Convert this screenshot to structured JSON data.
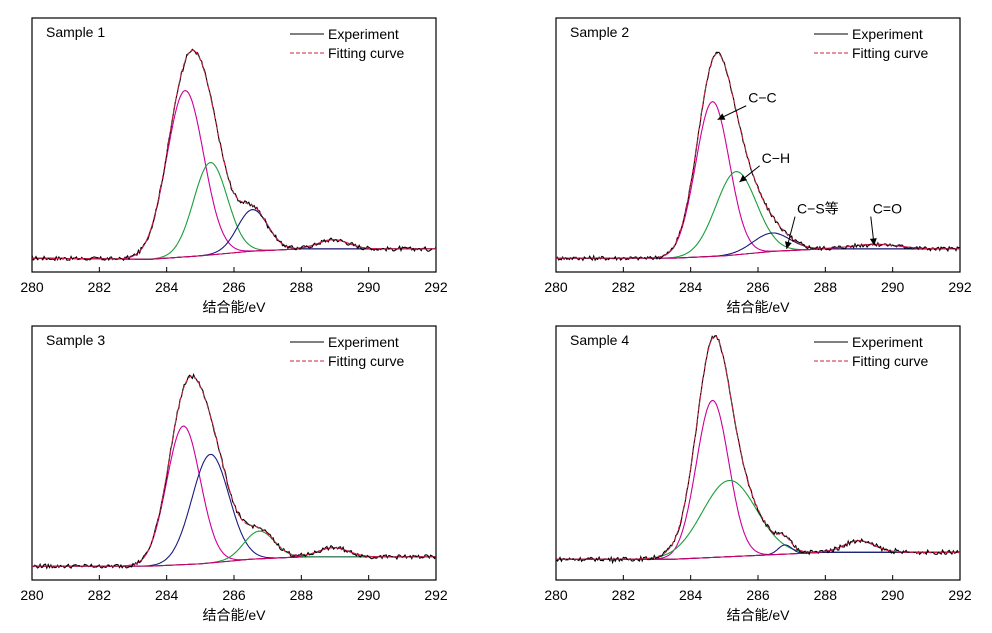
{
  "chart_data": [
    {
      "type": "line",
      "panel_title": "Sample 1",
      "xlabel": "结合能/eV",
      "ylabel": "",
      "xlim": [
        280,
        292
      ],
      "ylim": [
        0,
        1.1
      ],
      "xticks": [
        280,
        282,
        284,
        286,
        288,
        290,
        292
      ],
      "y_axis_tick_labels": false,
      "legend": {
        "position": "top-right",
        "entries": [
          "Experiment",
          "Fitting curve"
        ]
      },
      "baseline": [
        [
          280,
          0.06
        ],
        [
          283.5,
          0.055
        ],
        [
          285,
          0.07
        ],
        [
          286.5,
          0.09
        ],
        [
          288,
          0.1
        ],
        [
          292,
          0.1
        ]
      ],
      "components": [
        {
          "color": "#cc0099",
          "center": 284.55,
          "height": 0.72,
          "width": 0.55
        },
        {
          "color": "#1a9e3a",
          "center": 285.3,
          "height": 0.4,
          "width": 0.5
        },
        {
          "color": "#1a1a80",
          "center": 286.55,
          "height": 0.18,
          "width": 0.45
        },
        {
          "color": "#cc0066",
          "center": 288.95,
          "height": 0.04,
          "width": 0.45
        }
      ],
      "experiment": {
        "color": "#000000",
        "peak_x": 284.8,
        "peak_y": 0.98
      },
      "fitting": {
        "color": "#cc2244",
        "dash": true
      },
      "annotations": []
    },
    {
      "type": "line",
      "panel_title": "Sample 2",
      "xlabel": "结合能/eV",
      "ylabel": "",
      "xlim": [
        280,
        292
      ],
      "ylim": [
        0,
        1.1
      ],
      "xticks": [
        280,
        282,
        284,
        286,
        288,
        290,
        292
      ],
      "y_axis_tick_labels": false,
      "legend": {
        "position": "top-right",
        "entries": [
          "Experiment",
          "Fitting curve"
        ]
      },
      "baseline": [
        [
          280,
          0.06
        ],
        [
          283.5,
          0.06
        ],
        [
          285,
          0.07
        ],
        [
          286.5,
          0.09
        ],
        [
          288,
          0.1
        ],
        [
          292,
          0.1
        ]
      ],
      "components": [
        {
          "color": "#cc0099",
          "center": 284.65,
          "height": 0.67,
          "width": 0.5
        },
        {
          "color": "#1a9e3a",
          "center": 285.35,
          "height": 0.36,
          "width": 0.6
        },
        {
          "color": "#1a1a80",
          "center": 286.4,
          "height": 0.08,
          "width": 0.55
        },
        {
          "color": "#cc0066",
          "center": 289.5,
          "height": 0.02,
          "width": 0.7
        }
      ],
      "experiment": {
        "color": "#000000",
        "peak_x": 284.75,
        "peak_y": 0.9
      },
      "fitting": {
        "color": "#cc2244",
        "dash": true
      },
      "annotations": [
        {
          "text": "C−C",
          "tip": [
            284.8,
            0.66
          ],
          "label": [
            285.65,
            0.72
          ]
        },
        {
          "text": "C−H",
          "tip": [
            285.45,
            0.39
          ],
          "label": [
            286.05,
            0.46
          ]
        },
        {
          "text": "C−S等",
          "tip": [
            286.85,
            0.1
          ],
          "label": [
            287.1,
            0.24
          ]
        },
        {
          "text": "C=O",
          "tip": [
            289.45,
            0.115
          ],
          "label": [
            289.35,
            0.24
          ]
        }
      ]
    },
    {
      "type": "line",
      "panel_title": "Sample 3",
      "xlabel": "结合能/eV",
      "ylabel": "",
      "xlim": [
        280,
        292
      ],
      "ylim": [
        0,
        1.1
      ],
      "xticks": [
        280,
        282,
        284,
        286,
        288,
        290,
        292
      ],
      "y_axis_tick_labels": false,
      "legend": {
        "position": "top-right",
        "entries": [
          "Experiment",
          "Fitting curve"
        ]
      },
      "baseline": [
        [
          280,
          0.06
        ],
        [
          283.5,
          0.06
        ],
        [
          285,
          0.07
        ],
        [
          286.5,
          0.09
        ],
        [
          288,
          0.1
        ],
        [
          292,
          0.1
        ]
      ],
      "components": [
        {
          "color": "#cc0099",
          "center": 284.5,
          "height": 0.6,
          "width": 0.5
        },
        {
          "color": "#1a1a80",
          "center": 285.3,
          "height": 0.47,
          "width": 0.55
        },
        {
          "color": "#1a9e3a",
          "center": 286.75,
          "height": 0.12,
          "width": 0.45
        },
        {
          "color": "#cc0066",
          "center": 288.95,
          "height": 0.04,
          "width": 0.45
        }
      ],
      "experiment": {
        "color": "#000000",
        "peak_x": 284.75,
        "peak_y": 0.91
      },
      "fitting": {
        "color": "#cc2244",
        "dash": true
      },
      "annotations": []
    },
    {
      "type": "line",
      "panel_title": "Sample 4",
      "xlabel": "结合能/eV",
      "ylabel": "",
      "xlim": [
        280,
        292
      ],
      "ylim": [
        0,
        1.1
      ],
      "xticks": [
        280,
        282,
        284,
        286,
        288,
        290,
        292
      ],
      "y_axis_tick_labels": false,
      "legend": {
        "position": "top-right",
        "entries": [
          "Experiment",
          "Fitting curve"
        ]
      },
      "baseline": [
        [
          280,
          0.09
        ],
        [
          283.5,
          0.09
        ],
        [
          285,
          0.1
        ],
        [
          286.5,
          0.11
        ],
        [
          288,
          0.12
        ],
        [
          292,
          0.12
        ]
      ],
      "components": [
        {
          "color": "#cc0099",
          "center": 284.65,
          "height": 0.68,
          "width": 0.48
        },
        {
          "color": "#1a9e3a",
          "center": 285.15,
          "height": 0.33,
          "width": 0.8
        },
        {
          "color": "#1a1a80",
          "center": 286.8,
          "height": 0.04,
          "width": 0.2
        },
        {
          "color": "#cc0066",
          "center": 289.0,
          "height": 0.05,
          "width": 0.45
        }
      ],
      "experiment": {
        "color": "#000000",
        "peak_x": 284.75,
        "peak_y": 0.96
      },
      "fitting": {
        "color": "#cc2244",
        "dash": true
      },
      "annotations": []
    }
  ]
}
